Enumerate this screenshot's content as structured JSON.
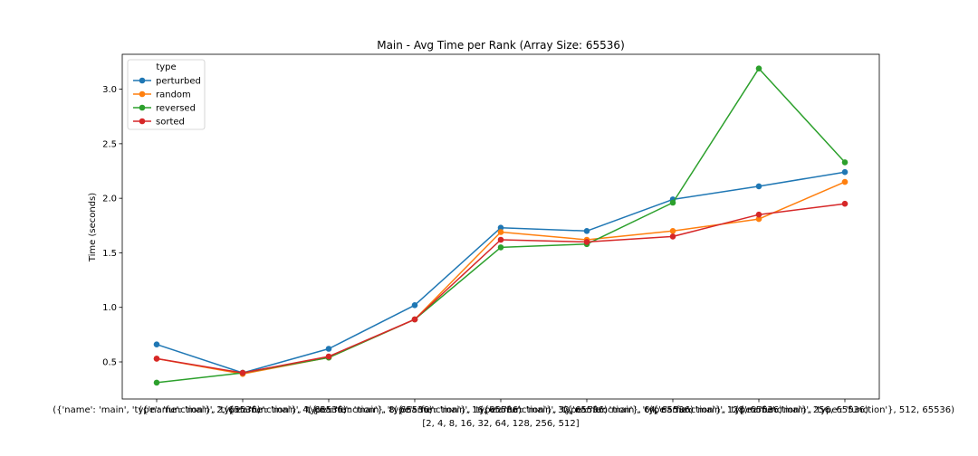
{
  "chart_data": {
    "type": "line",
    "title": "Main - Avg Time per Rank (Array Size: 65536)",
    "xlabel": "[2, 4, 8, 16, 32, 64, 128, 256, 512]",
    "ylabel": "Time (seconds)",
    "x_tick_labels": [
      "({'name': 'main', 'type': 'function'}, 2, 65536)",
      "({'name': 'main', 'type': 'function'}, 4, 65536)",
      "({'name': 'main', 'type': 'function'}, 8, 65536)",
      "({'name': 'main', 'type': 'function'}, 16, 65536)",
      "({'name': 'main', 'type': 'function'}, 32, 65536)",
      "({'name': 'main', 'type': 'function'}, 64, 65536)",
      "({'name': 'main', 'type': 'function'}, 128, 65536)",
      "({'name': 'main', 'type': 'function'}, 256, 65536)",
      "({'name': 'main', 'type': 'function'}, 512, 65536)"
    ],
    "ylim": [
      0.16,
      3.32
    ],
    "y_ticks": [
      0.5,
      1.0,
      1.5,
      2.0,
      2.5,
      3.0
    ],
    "y_tick_labels": [
      "0.5",
      "1.0",
      "1.5",
      "2.0",
      "2.5",
      "3.0"
    ],
    "grid": false,
    "legend": {
      "title": "type",
      "placement": "top-left"
    },
    "series": [
      {
        "name": "perturbed",
        "color": "#1f77b4",
        "values": [
          0.66,
          0.4,
          0.62,
          1.02,
          1.73,
          1.7,
          1.99,
          2.11,
          2.24
        ]
      },
      {
        "name": "random",
        "color": "#ff7f0e",
        "values": [
          0.53,
          0.39,
          0.54,
          0.89,
          1.69,
          1.62,
          1.7,
          1.81,
          2.15
        ]
      },
      {
        "name": "reversed",
        "color": "#2ca02c",
        "values": [
          0.31,
          0.4,
          0.54,
          0.89,
          1.55,
          1.58,
          1.96,
          3.19,
          2.33
        ]
      },
      {
        "name": "sorted",
        "color": "#d62728",
        "values": [
          0.53,
          0.4,
          0.55,
          0.89,
          1.62,
          1.6,
          1.65,
          1.85,
          1.95
        ]
      }
    ]
  }
}
